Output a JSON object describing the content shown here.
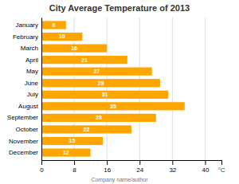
{
  "chart_data": {
    "type": "bar",
    "orientation": "horizontal",
    "title": "City Average Temperature of 2013",
    "categories": [
      "December",
      "November",
      "October",
      "September",
      "August",
      "July",
      "June",
      "May",
      "April",
      "March",
      "February",
      "January"
    ],
    "values": [
      12,
      15,
      22,
      28,
      35,
      31,
      29,
      27,
      21,
      16,
      10,
      6
    ],
    "color": "#FFA500",
    "xlabel": "°C",
    "xlim": [
      0,
      44
    ],
    "xticks": [
      0,
      8,
      16,
      24,
      32,
      40
    ],
    "grid": true,
    "data_labels": true,
    "annotations": [
      "Company name/author"
    ]
  }
}
